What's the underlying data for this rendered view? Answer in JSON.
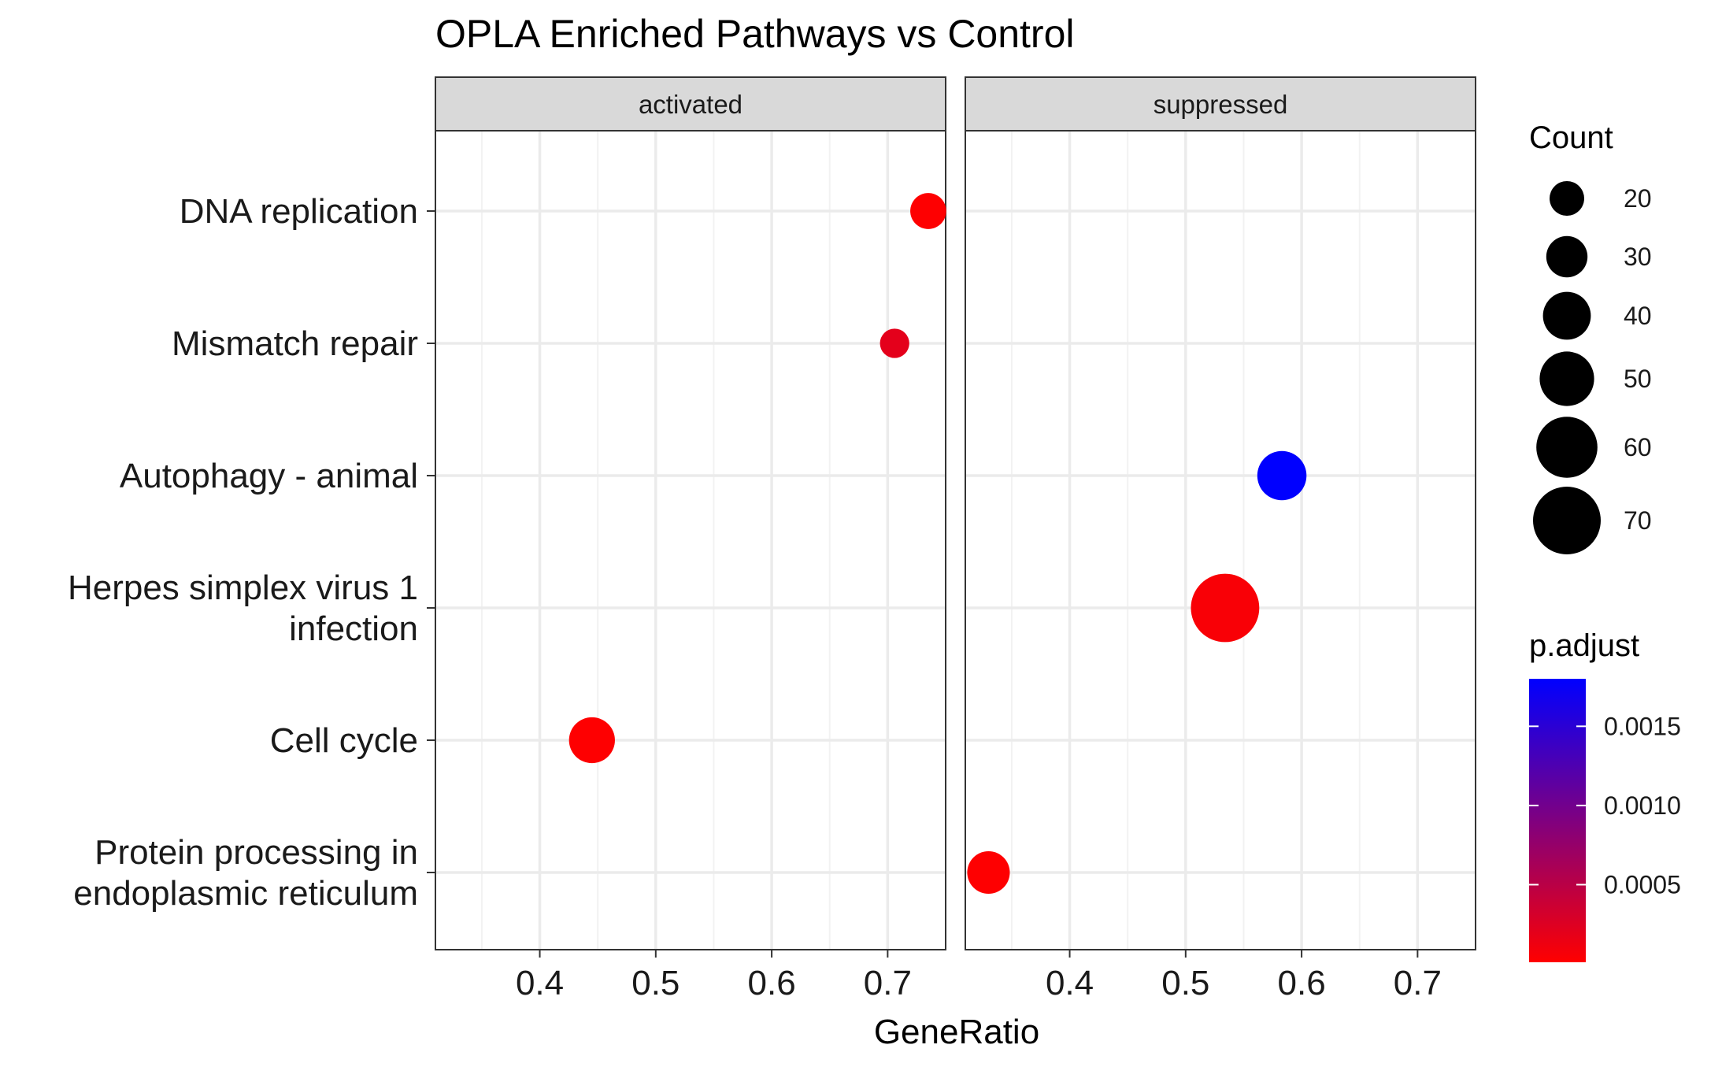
{
  "chart_data": {
    "type": "scatter",
    "title": "OPLA Enriched Pathways vs Control",
    "xlabel": "GeneRatio",
    "ylabel": "",
    "facets": [
      "activated",
      "suppressed"
    ],
    "categories": [
      "DNA replication",
      "Mismatch repair",
      "Autophagy - animal",
      "Herpes simplex virus 1\ninfection",
      "Cell cycle",
      "Protein processing in\nendoplasmic reticulum"
    ],
    "xlim": [
      0.31,
      0.75
    ],
    "xticks": [
      0.4,
      0.5,
      0.6,
      0.7
    ],
    "xtick_labels": [
      "0.4",
      "0.5",
      "0.6",
      "0.7"
    ],
    "grid": true,
    "points": [
      {
        "facet": "activated",
        "category": "DNA replication",
        "x": 0.735,
        "count": 22,
        "p_adjust": 2e-05
      },
      {
        "facet": "activated",
        "category": "Mismatch repair",
        "x": 0.706,
        "count": 12,
        "p_adjust": 0.0002
      },
      {
        "facet": "activated",
        "category": "Cell cycle",
        "x": 0.445,
        "count": 37,
        "p_adjust": 2e-05
      },
      {
        "facet": "suppressed",
        "category": "Autophagy - animal",
        "x": 0.583,
        "count": 42,
        "p_adjust": 0.0018
      },
      {
        "facet": "suppressed",
        "category": "Herpes simplex virus 1\ninfection",
        "x": 0.534,
        "count": 71,
        "p_adjust": 5e-05
      },
      {
        "facet": "suppressed",
        "category": "Protein processing in\nendoplasmic reticulum",
        "x": 0.33,
        "count": 32,
        "p_adjust": 2e-05
      }
    ],
    "size_legend": {
      "title": "Count",
      "values": [
        20,
        30,
        40,
        50,
        60,
        70
      ],
      "labels": [
        "20",
        "30",
        "40",
        "50",
        "60",
        "70"
      ]
    },
    "color_legend": {
      "title": "p.adjust",
      "range": [
        1e-05,
        0.0018
      ],
      "ticks": [
        0.0005,
        0.001,
        0.0015
      ],
      "tick_labels": [
        "0.0005",
        "0.0010",
        "0.0015"
      ],
      "low_color": "#ff0000",
      "high_color": "#0000ff"
    },
    "legend_position": "right"
  }
}
